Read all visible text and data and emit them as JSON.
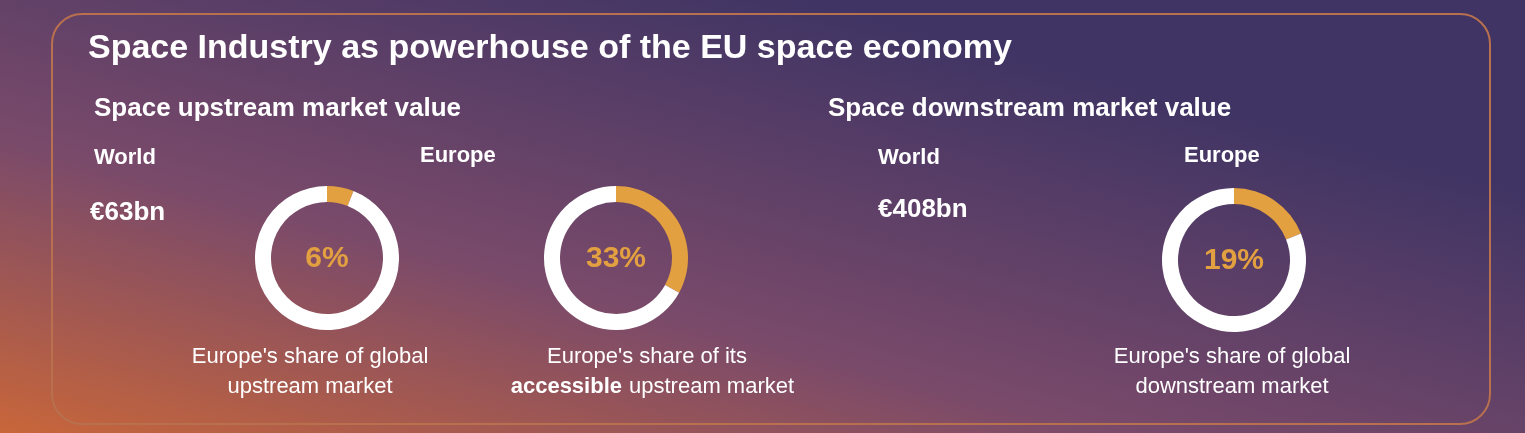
{
  "chart_data": [
    {
      "type": "other",
      "title": "Space Industry as powerhouse of the EU space economy"
    },
    {
      "type": "donut",
      "title": "Space upstream market value",
      "annotations": [
        "World",
        "€63bn",
        "Europe's share of global\nupstream market"
      ],
      "categories": [
        null,
        null
      ],
      "values": [
        6,
        94
      ],
      "colors": [
        "#e3a040",
        "#ffffff"
      ],
      "value_labels": [
        "6%",
        null
      ]
    },
    {
      "type": "donut",
      "title": "Europe",
      "annotations": [
        "Europe's share of its\naccessible upstream market"
      ],
      "categories": [
        null,
        null
      ],
      "values": [
        33,
        67
      ],
      "colors": [
        "#e3a040",
        "#ffffff"
      ],
      "value_labels": [
        "33%",
        null
      ]
    },
    {
      "type": "donut",
      "title": "Space downstream market value",
      "annotations": [
        "World",
        "€408bn",
        "Europe",
        "Europe's share of global\ndownstream market"
      ],
      "categories": [
        null,
        null
      ],
      "values": [
        19,
        81
      ],
      "colors": [
        "#e3a040",
        "#ffffff"
      ],
      "value_labels": [
        "19%",
        null
      ]
    }
  ]
}
